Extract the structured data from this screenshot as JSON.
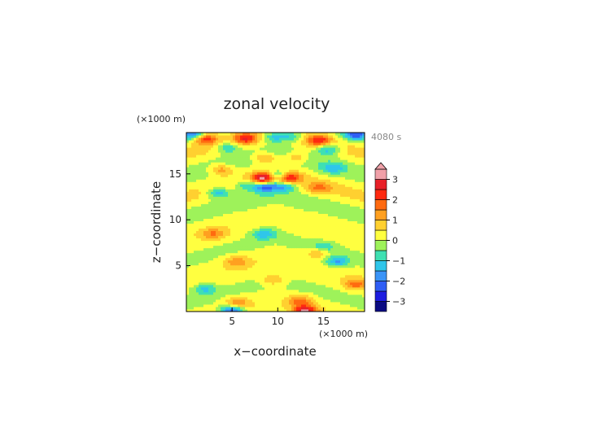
{
  "chart_data": {
    "type": "heatmap",
    "title": "zonal velocity",
    "time_label": "4080 s",
    "xlabel": "x−coordinate",
    "ylabel": "z−coordinate",
    "x_unit": "(×1000 m)",
    "y_unit": "(×1000 m)",
    "xlim": [
      0,
      19.5
    ],
    "ylim": [
      0,
      19.5
    ],
    "x_ticks": [
      5,
      10,
      15
    ],
    "y_ticks": [
      5,
      10,
      15
    ],
    "colorbar": {
      "ticks": [
        3,
        2,
        1,
        0,
        -1,
        -2,
        -3
      ],
      "range": [
        -3.5,
        3.5
      ],
      "levels": [
        {
          "min": -3.5,
          "max": -3.0,
          "color": "#0b0b82"
        },
        {
          "min": -3.0,
          "max": -2.5,
          "color": "#1d1de0"
        },
        {
          "min": -2.5,
          "max": -2.0,
          "color": "#2f5ef5"
        },
        {
          "min": -2.0,
          "max": -1.5,
          "color": "#3a94f7"
        },
        {
          "min": -1.5,
          "max": -1.0,
          "color": "#2fc6ea"
        },
        {
          "min": -1.0,
          "max": -0.5,
          "color": "#3fe0b2"
        },
        {
          "min": -0.5,
          "max": 0.0,
          "color": "#9ef25a"
        },
        {
          "min": 0.0,
          "max": 0.5,
          "color": "#ffff40"
        },
        {
          "min": 0.5,
          "max": 1.0,
          "color": "#ffd030"
        },
        {
          "min": 1.0,
          "max": 1.5,
          "color": "#ffa020"
        },
        {
          "min": 1.5,
          "max": 2.0,
          "color": "#ff6a10"
        },
        {
          "min": 2.0,
          "max": 2.5,
          "color": "#ff2a10"
        },
        {
          "min": 2.5,
          "max": 3.0,
          "color": "#e82028"
        },
        {
          "min": 3.0,
          "max": 3.5,
          "color": "#f0a0a8"
        }
      ]
    },
    "approx_features": [
      {
        "x": 8.5,
        "z": 14.6,
        "value": 3.2
      },
      {
        "x": 11.0,
        "z": 14.6,
        "value": 3.2
      },
      {
        "x": 10.1,
        "z": 14.8,
        "value": -2.8
      },
      {
        "x": 8.6,
        "z": 13.6,
        "value": -2.2
      },
      {
        "x": 10.8,
        "z": 13.7,
        "value": -1.6
      },
      {
        "x": 3.5,
        "z": 13.0,
        "value": -1.6
      },
      {
        "x": 6.5,
        "z": 13.8,
        "value": -1.2
      },
      {
        "x": 3.8,
        "z": 15.5,
        "value": 1.4
      },
      {
        "x": 14.5,
        "z": 13.5,
        "value": 1.2
      },
      {
        "x": 16.0,
        "z": 15.7,
        "value": -1.2
      },
      {
        "x": 2.0,
        "z": 18.9,
        "value": 2.4
      },
      {
        "x": 6.5,
        "z": 18.9,
        "value": 2.0
      },
      {
        "x": 14.5,
        "z": 18.7,
        "value": 2.0
      },
      {
        "x": 18.5,
        "z": 19.3,
        "value": -2.2
      },
      {
        "x": 0.8,
        "z": 19.3,
        "value": -2.0
      },
      {
        "x": 9.6,
        "z": 19.1,
        "value": -1.4
      },
      {
        "x": 11.5,
        "z": 19.1,
        "value": -1.4
      },
      {
        "x": 4.5,
        "z": 17.9,
        "value": -1.3
      },
      {
        "x": 15.5,
        "z": 17.7,
        "value": -1.6
      },
      {
        "x": 8.5,
        "z": 16.8,
        "value": 1.2
      },
      {
        "x": 12.0,
        "z": 16.8,
        "value": 1.0
      },
      {
        "x": 3.0,
        "z": 8.5,
        "value": 1.2
      },
      {
        "x": 8.5,
        "z": 8.5,
        "value": -1.4
      },
      {
        "x": 15.0,
        "z": 7.0,
        "value": -1.2
      },
      {
        "x": 5.5,
        "z": 5.5,
        "value": 1.2
      },
      {
        "x": 14.5,
        "z": 6.5,
        "value": 1.3
      },
      {
        "x": 16.5,
        "z": 5.5,
        "value": -1.6
      },
      {
        "x": 2.0,
        "z": 2.5,
        "value": -1.2
      },
      {
        "x": 18.5,
        "z": 3.0,
        "value": 1.4
      },
      {
        "x": 5.5,
        "z": 1.0,
        "value": 1.3
      },
      {
        "x": 12.5,
        "z": 1.2,
        "value": 1.4
      },
      {
        "x": 5.0,
        "z": 0.1,
        "value": -2.6
      },
      {
        "x": 13.0,
        "z": 0.1,
        "value": 2.8
      },
      {
        "x": 9.5,
        "z": 3.5,
        "value": 1.0
      }
    ]
  }
}
